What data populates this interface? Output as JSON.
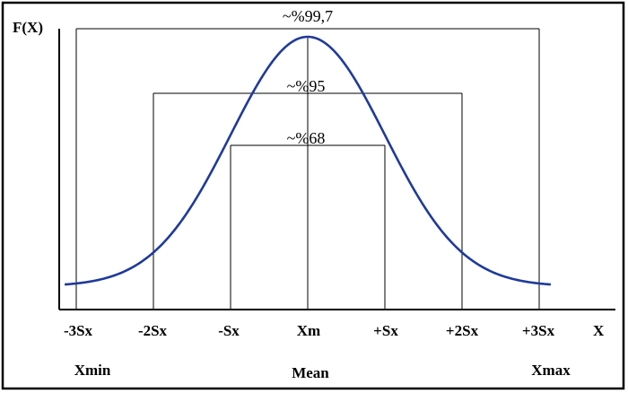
{
  "diagram": {
    "y_axis_label": "F(X)",
    "x_axis_label": "X",
    "ticks": [
      "-3Sx",
      "-2Sx",
      "-Sx",
      "Xm",
      "+Sx",
      "+2Sx",
      "+3Sx"
    ],
    "bottom_labels": {
      "min": "Xmin",
      "mean": "Mean",
      "max": "Xmax"
    },
    "intervals": [
      {
        "label": "~%99,7",
        "from_sigma": -3,
        "to_sigma": 3
      },
      {
        "label": "~%95",
        "from_sigma": -2,
        "to_sigma": 2
      },
      {
        "label": "~%68",
        "from_sigma": -1,
        "to_sigma": 1
      }
    ],
    "colors": {
      "curve": "#1f3a9a",
      "lines": "#000000"
    }
  }
}
